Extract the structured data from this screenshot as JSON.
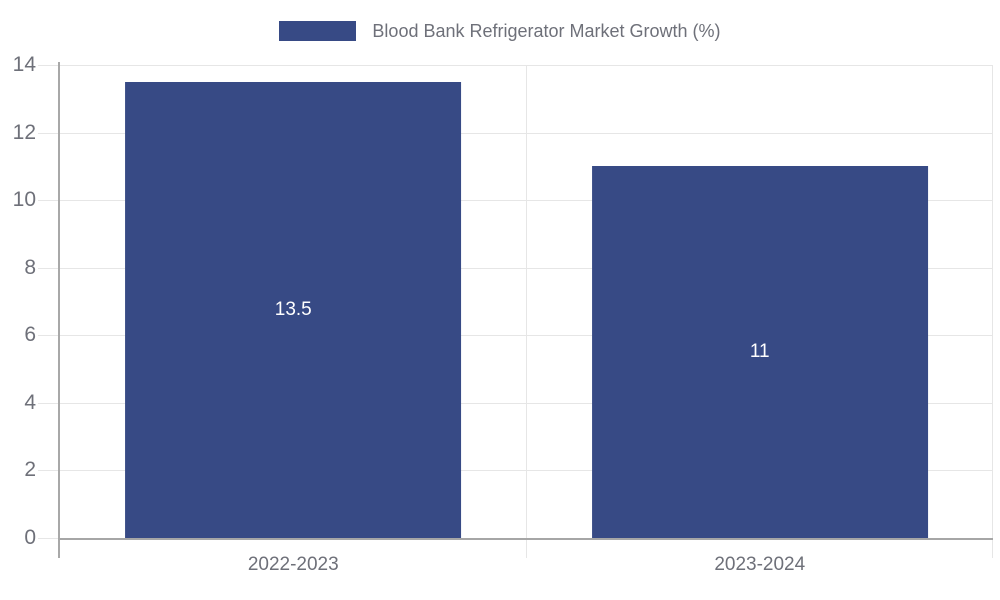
{
  "legend": {
    "label": "Blood Bank Refrigerator Market Growth (%)"
  },
  "colors": {
    "bar": "#374A85",
    "text": "#6e7079",
    "gridline": "#e6e6e6",
    "axis_line": "#a8a8a8",
    "bar_label": "#ffffff",
    "background": "#ffffff"
  },
  "chart_data": {
    "type": "bar",
    "title": "Blood Bank Refrigerator Market Growth (%)",
    "categories": [
      "2022-2023",
      "2023-2024"
    ],
    "values": [
      13.5,
      11
    ],
    "value_labels": [
      "13.5",
      "11"
    ],
    "xlabel": "",
    "ylabel": "",
    "ylim": [
      0,
      14
    ],
    "yticks": [
      0,
      2,
      4,
      6,
      8,
      10,
      12,
      14
    ],
    "grid": true,
    "legend_position": "top-center",
    "bar_width_fraction": 0.72
  }
}
